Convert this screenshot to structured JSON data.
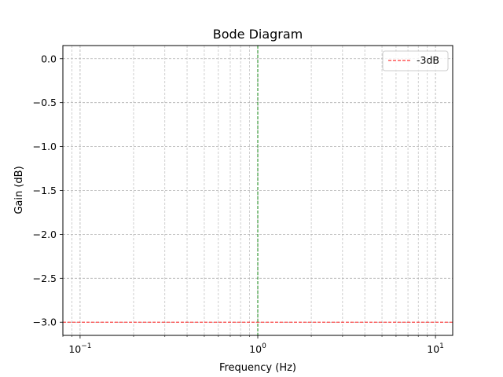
{
  "chart_data": {
    "type": "line",
    "title": "Bode Diagram",
    "xlabel": "Frequency (Hz)",
    "ylabel": "Gain (dB)",
    "x_scale": "log",
    "xlim": [
      0.08,
      12.5
    ],
    "ylim": [
      -3.15,
      0.15
    ],
    "x_ticks": [
      {
        "value": 0.1,
        "base": "10",
        "exp": "−1"
      },
      {
        "value": 1,
        "base": "10",
        "exp": "0"
      },
      {
        "value": 10,
        "base": "10",
        "exp": "1"
      }
    ],
    "y_ticks": [
      {
        "value": 0.0,
        "label": "0.0"
      },
      {
        "value": -0.5,
        "label": "−0.5"
      },
      {
        "value": -1.0,
        "label": "−1.0"
      },
      {
        "value": -1.5,
        "label": "−1.5"
      },
      {
        "value": -2.0,
        "label": "−2.0"
      },
      {
        "value": -2.5,
        "label": "−2.5"
      },
      {
        "value": -3.0,
        "label": "−3.0"
      }
    ],
    "grid": "both (major and minor)",
    "legend_position": "top-right",
    "series": [
      {
        "name": "-3dB",
        "kind": "horizontal-line",
        "y": -3,
        "color": "#ff0000",
        "style": "dashed"
      }
    ],
    "reference_lines": [
      {
        "kind": "vertical-line",
        "x": 1,
        "color": "#008000",
        "style": "dashed"
      }
    ]
  }
}
